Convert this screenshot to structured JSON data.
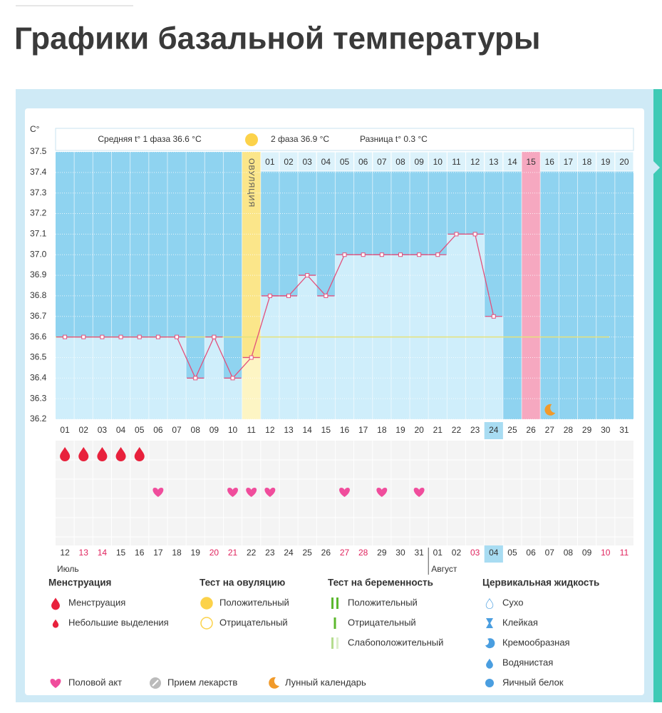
{
  "page_title": "Графики базальной температуры",
  "chart_data": {
    "type": "line",
    "y_axis_label": "C°",
    "summary": {
      "phase1": "Средняя t° 1 фаза 36.6 °C",
      "phase2": "2 фаза 36.9 °C",
      "difference": "Разница t° 0.3 °C"
    },
    "ovulation_label": "ОВУЛЯЦИЯ",
    "ovulation_day": "11",
    "highlighted_day": "26",
    "current_day": "24",
    "x": [
      "01",
      "02",
      "03",
      "04",
      "05",
      "06",
      "07",
      "08",
      "09",
      "10",
      "11",
      "12",
      "13",
      "14",
      "15",
      "16",
      "17",
      "18",
      "19",
      "20",
      "21",
      "22",
      "23",
      "24",
      "25",
      "26",
      "27",
      "28",
      "29",
      "30",
      "31"
    ],
    "values": [
      36.6,
      36.6,
      36.6,
      36.6,
      36.6,
      36.6,
      36.6,
      36.4,
      36.6,
      36.4,
      36.5,
      36.8,
      36.8,
      36.9,
      36.8,
      37.0,
      37.0,
      37.0,
      37.0,
      37.0,
      37.0,
      37.1,
      37.1,
      36.7,
      null,
      null,
      null,
      null,
      null,
      null,
      null
    ],
    "color": "#e2507c",
    "coverline": 36.6,
    "days_after_ovulation": [
      "01",
      "02",
      "03",
      "04",
      "05",
      "06",
      "07",
      "08",
      "09",
      "10",
      "11",
      "12",
      "13",
      "14",
      "15",
      "16",
      "17",
      "18",
      "19",
      "20"
    ],
    "dates": [
      "12",
      "13",
      "14",
      "15",
      "16",
      "17",
      "18",
      "19",
      "20",
      "21",
      "22",
      "23",
      "24",
      "25",
      "26",
      "27",
      "28",
      "29",
      "30",
      "31",
      "01",
      "02",
      "03",
      "04",
      "05",
      "06",
      "07",
      "08",
      "09",
      "10",
      "11"
    ],
    "weekends": [
      1,
      2,
      8,
      9,
      15,
      16,
      22,
      29,
      30
    ],
    "weekend_color": "#e0245e",
    "months": [
      "Июль",
      "Август"
    ],
    "menstruation_days": [
      "01",
      "02",
      "03",
      "04",
      "05"
    ],
    "intercourse_days": [
      "06",
      "10",
      "11",
      "12",
      "16",
      "18",
      "20"
    ],
    "lunar_days": [
      "27"
    ],
    "ylim": [
      36.2,
      37.5
    ],
    "yticks": [
      36.2,
      36.3,
      36.4,
      36.5,
      36.6,
      36.7,
      36.8,
      36.9,
      {
        "value": 37,
        "label": "37.0"
      },
      37.1,
      37.2,
      37.3,
      37.4,
      37.5
    ],
    "grid": true
  },
  "legend": {
    "menstruation": {
      "title": "Менструация",
      "items": [
        "Менструация",
        "Небольшие выделения"
      ]
    },
    "ovulation_test": {
      "title": "Тест на овуляцию",
      "items": [
        "Положительный",
        "Отрицательный"
      ]
    },
    "pregnancy_test": {
      "title": "Тест на беременность",
      "items": [
        "Положительный",
        "Отрицательный",
        "Слабоположительный"
      ]
    },
    "cervical_fluid": {
      "title": "Цервикальная жидкость",
      "items": [
        "Сухо",
        "Клейкая",
        "Кремообразная",
        "Водянистая",
        "Яичный белок"
      ]
    },
    "other": [
      "Половой акт",
      "Прием лекарств",
      "Лунный календарь"
    ]
  }
}
